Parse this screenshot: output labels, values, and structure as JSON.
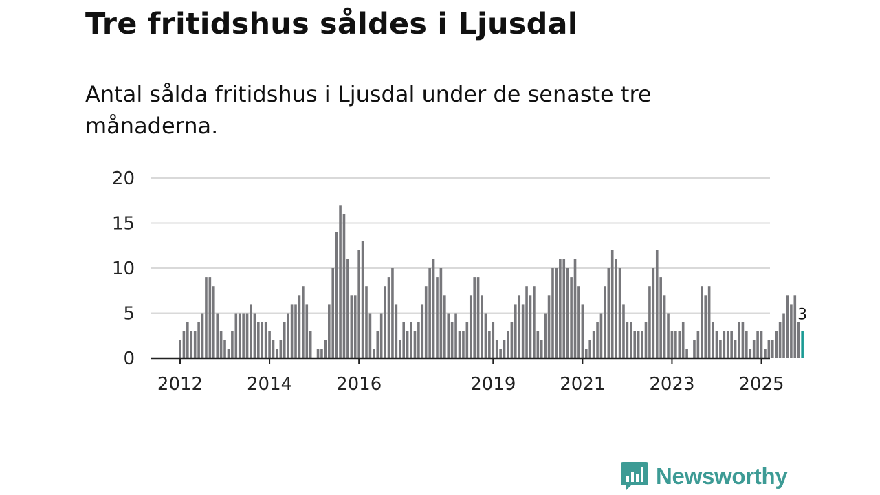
{
  "header": {
    "title": "Tre fritidshus såldes i Ljusdal",
    "subtitle": "Antal sålda fritidshus i Ljusdal under de senaste tre månaderna."
  },
  "brand": {
    "name": "Newsworthy",
    "color": "#3d9b95",
    "icon": "newsworthy-logo-icon"
  },
  "colors": {
    "bar": "#77777b",
    "highlight": "#1a9a94",
    "grid": "#d9d9d9",
    "axis": "#222222"
  },
  "chart_data": {
    "type": "bar",
    "title": "Tre fritidshus såldes i Ljusdal",
    "subtitle": "Antal sålda fritidshus i Ljusdal under de senaste tre månaderna.",
    "xlabel": "",
    "ylabel": "",
    "ylim": [
      0,
      20
    ],
    "yticks": [
      0,
      5,
      10,
      15,
      20
    ],
    "grid": true,
    "x_tick_labels": [
      {
        "label": "2012",
        "index": 0
      },
      {
        "label": "2014",
        "index": 24
      },
      {
        "label": "2016",
        "index": 48
      },
      {
        "label": "2019",
        "index": 84
      },
      {
        "label": "2021",
        "index": 108
      },
      {
        "label": "2023",
        "index": 132
      },
      {
        "label": "2025",
        "index": 156
      }
    ],
    "values": [
      2,
      3,
      4,
      3,
      3,
      4,
      5,
      9,
      9,
      8,
      5,
      3,
      2,
      1,
      3,
      5,
      5,
      5,
      5,
      6,
      5,
      4,
      4,
      4,
      3,
      2,
      1,
      2,
      4,
      5,
      6,
      6,
      7,
      8,
      6,
      3,
      0,
      1,
      1,
      2,
      6,
      10,
      14,
      17,
      16,
      11,
      7,
      7,
      12,
      13,
      8,
      5,
      1,
      3,
      5,
      8,
      9,
      10,
      6,
      2,
      4,
      3,
      4,
      3,
      4,
      6,
      8,
      10,
      11,
      9,
      10,
      7,
      5,
      4,
      5,
      3,
      3,
      4,
      7,
      9,
      9,
      7,
      5,
      3,
      4,
      2,
      1,
      2,
      3,
      4,
      6,
      7,
      6,
      8,
      7,
      8,
      3,
      2,
      5,
      7,
      10,
      10,
      11,
      11,
      10,
      9,
      11,
      8,
      6,
      1,
      2,
      3,
      4,
      5,
      8,
      10,
      12,
      11,
      10,
      6,
      4,
      4,
      3,
      3,
      3,
      4,
      8,
      10,
      12,
      9,
      7,
      5,
      3,
      3,
      3,
      4,
      1,
      0,
      2,
      3,
      8,
      7,
      8,
      4,
      3,
      2,
      3,
      3,
      3,
      2,
      4,
      4,
      3,
      1,
      2,
      3,
      3,
      1,
      2,
      2,
      3,
      4,
      5,
      7,
      6,
      7,
      4,
      3
    ],
    "highlight_last": true,
    "annotation": "3"
  }
}
